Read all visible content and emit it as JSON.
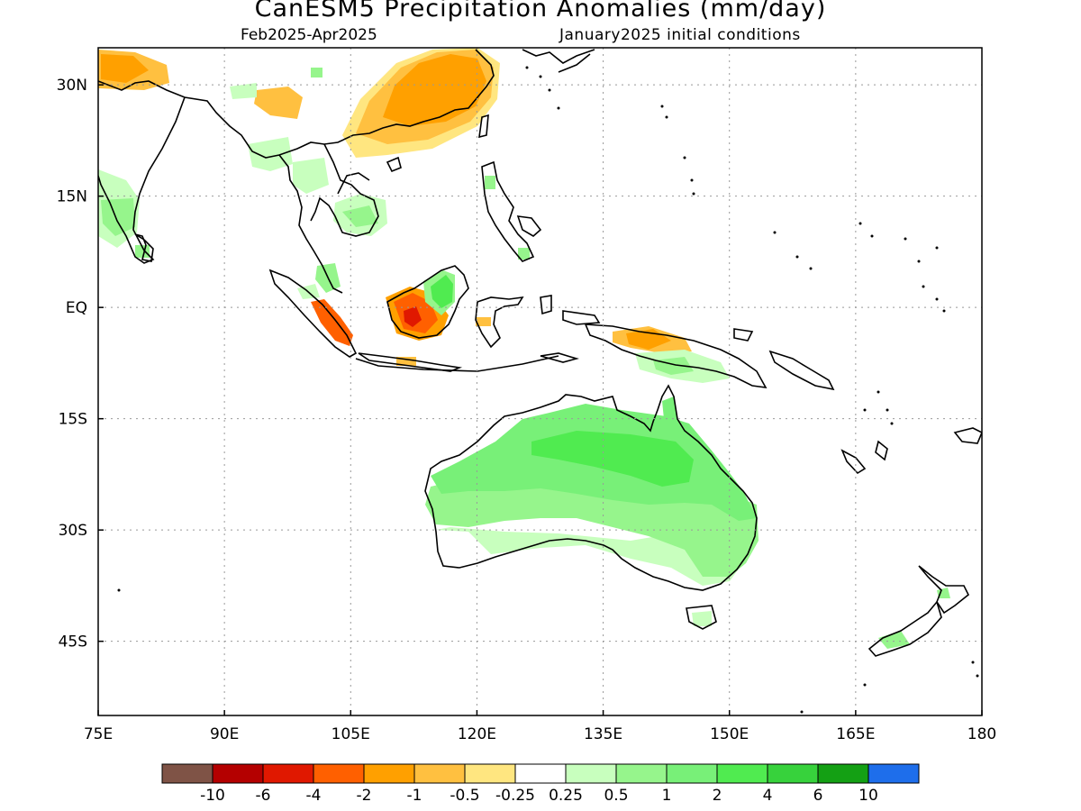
{
  "title": "CanESM5 Precipitation Anomalies (mm/day)",
  "period": "Feb2025-Apr2025",
  "init": "January2025 initial conditions",
  "map": {
    "lon_range": [
      75,
      180
    ],
    "lat_range": [
      -55,
      35
    ],
    "x_ticks": [
      {
        "value": 75,
        "label": "75E"
      },
      {
        "value": 90,
        "label": "90E"
      },
      {
        "value": 105,
        "label": "105E"
      },
      {
        "value": 120,
        "label": "120E"
      },
      {
        "value": 135,
        "label": "135E"
      },
      {
        "value": 150,
        "label": "150E"
      },
      {
        "value": 165,
        "label": "165E"
      },
      {
        "value": 180,
        "label": "180"
      }
    ],
    "y_ticks": [
      {
        "value": 30,
        "label": "30N"
      },
      {
        "value": 15,
        "label": "15N"
      },
      {
        "value": 0,
        "label": "EQ"
      },
      {
        "value": -15,
        "label": "15S"
      },
      {
        "value": -30,
        "label": "30S"
      },
      {
        "value": -45,
        "label": "45S"
      }
    ],
    "grid": "dotted",
    "anomaly_regions": [
      {
        "name": "Southern China",
        "category": "-1 to -0.5"
      },
      {
        "name": "Southern China core",
        "category": "-2 to -1"
      },
      {
        "name": "Northwest India",
        "category": "-1 to -0.5"
      },
      {
        "name": "Tibet / Nepal",
        "category": "-1 to -0.5"
      },
      {
        "name": "Borneo (southwest)",
        "category": "-4 to -2"
      },
      {
        "name": "Borneo core",
        "category": "-6 to -4"
      },
      {
        "name": "Sumatra (south)",
        "category": "-4 to -2"
      },
      {
        "name": "New Guinea (north)",
        "category": "-1 to -0.5"
      },
      {
        "name": "Borneo (northeast)",
        "category": "1 to 2"
      },
      {
        "name": "Western India",
        "category": "0.25 to 0.5"
      },
      {
        "name": "Indochina",
        "category": "0.25 to 0.5"
      },
      {
        "name": "Malay Peninsula",
        "category": "0.5 to 1"
      },
      {
        "name": "Southern New Guinea",
        "category": "0.25 to 0.5"
      },
      {
        "name": "Northern Australia",
        "category": "1 to 2"
      },
      {
        "name": "Australia interior",
        "category": "0.5 to 1"
      },
      {
        "name": "Southern Australia",
        "category": "0.25 to 0.5"
      },
      {
        "name": "Tasmania",
        "category": "0.25 to 0.5"
      },
      {
        "name": "New Zealand",
        "category": "0.25 to 0.5"
      }
    ]
  },
  "colorbar": {
    "colors": [
      "#7f5346",
      "#b40000",
      "#e01800",
      "#ff6000",
      "#ffa000",
      "#ffc040",
      "#ffe680",
      "#ffffff",
      "#c8ffbe",
      "#96f58c",
      "#78f078",
      "#50eb50",
      "#37d23c",
      "#14a014",
      "#1e6eeb"
    ],
    "labels": [
      "-10",
      "-6",
      "-4",
      "-2",
      "-1",
      "-0.5",
      "-0.25",
      "0.25",
      "0.5",
      "1",
      "2",
      "4",
      "6",
      "10"
    ]
  }
}
